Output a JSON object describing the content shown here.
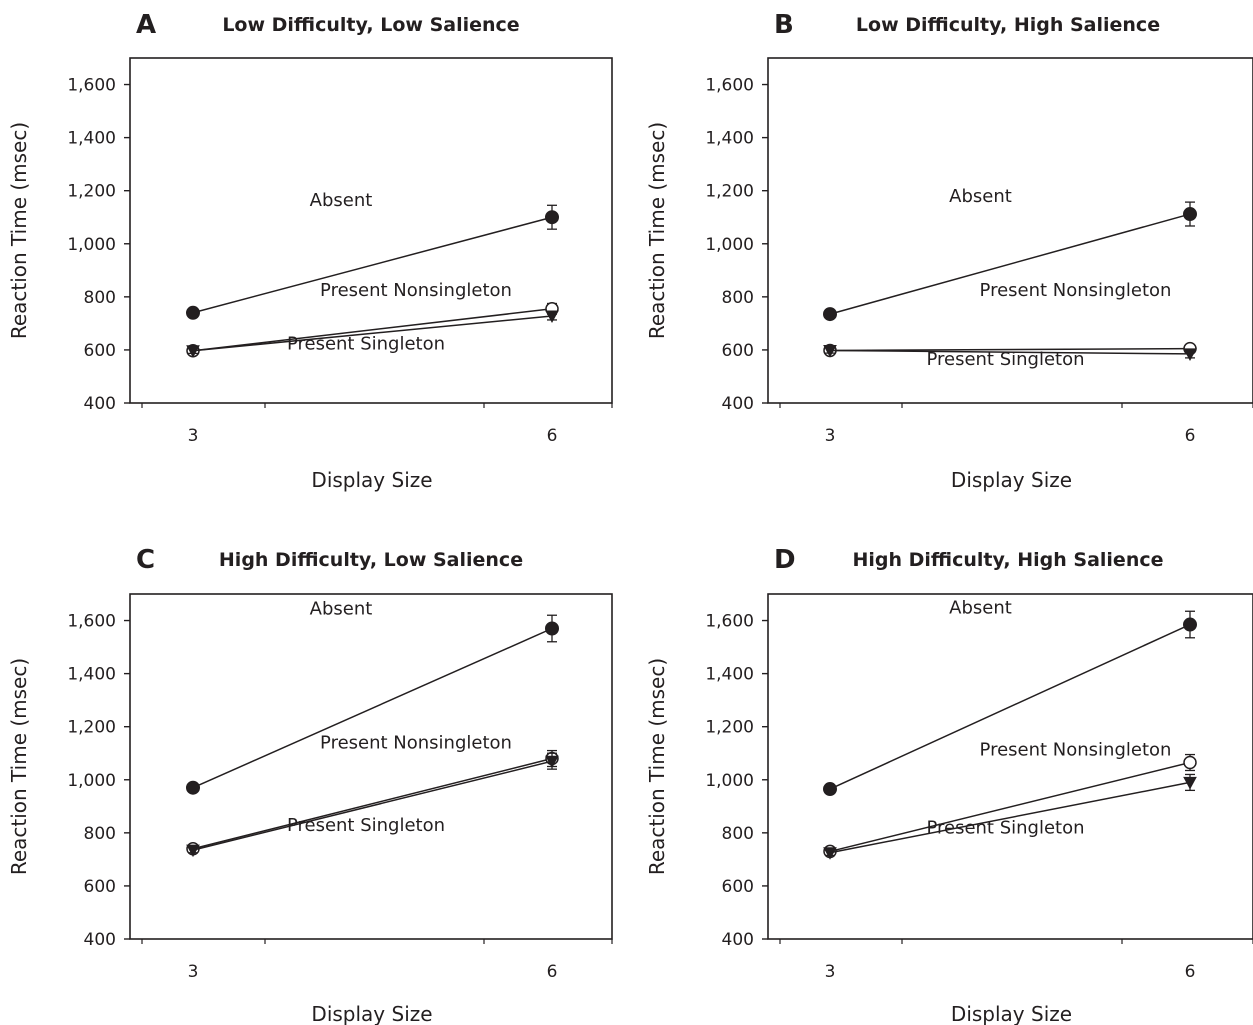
{
  "chart_data": [
    {
      "type": "line",
      "panel": "A",
      "title": "Low Difficulty, Low Salience",
      "xlabel": "Display Size",
      "ylabel": "Reaction Time (msec)",
      "x": [
        3,
        6
      ],
      "x_tick_labels": [
        "3",
        "6"
      ],
      "ylim": [
        400,
        1700
      ],
      "y_ticks": [
        400,
        600,
        800,
        1000,
        1200,
        1400,
        1600
      ],
      "y_tick_labels": [
        "400",
        "600",
        "800",
        "1,000",
        "1,200",
        "1,400",
        "1,600"
      ],
      "grid": false,
      "series": [
        {
          "name": "Absent",
          "marker": "filled-circle",
          "values": [
            740,
            1100
          ],
          "errors": [
            10,
            45
          ]
        },
        {
          "name": "Present Nonsingleton",
          "marker": "open-circle",
          "values": [
            597,
            755
          ],
          "errors": [
            10,
            20
          ]
        },
        {
          "name": "Present Singleton",
          "marker": "filled-triangle",
          "values": [
            597,
            728
          ],
          "errors": [
            10,
            15
          ]
        }
      ]
    },
    {
      "type": "line",
      "panel": "B",
      "title": "Low Difficulty, High Salience",
      "xlabel": "Display Size",
      "ylabel": "Reaction Time (msec)",
      "x": [
        3,
        6
      ],
      "x_tick_labels": [
        "3",
        "6"
      ],
      "ylim": [
        400,
        1700
      ],
      "y_ticks": [
        400,
        600,
        800,
        1000,
        1200,
        1400,
        1600
      ],
      "y_tick_labels": [
        "400",
        "600",
        "800",
        "1,000",
        "1,200",
        "1,400",
        "1,600"
      ],
      "grid": false,
      "series": [
        {
          "name": "Absent",
          "marker": "filled-circle",
          "values": [
            735,
            1112
          ],
          "errors": [
            10,
            45
          ]
        },
        {
          "name": "Present Nonsingleton",
          "marker": "open-circle",
          "values": [
            598,
            605
          ],
          "errors": [
            10,
            15
          ]
        },
        {
          "name": "Present Singleton",
          "marker": "filled-triangle",
          "values": [
            598,
            585
          ],
          "errors": [
            10,
            15
          ]
        }
      ]
    },
    {
      "type": "line",
      "panel": "C",
      "title": "High Difficulty, Low Salience",
      "xlabel": "Display Size",
      "ylabel": "Reaction Time (msec)",
      "x": [
        3,
        6
      ],
      "x_tick_labels": [
        "3",
        "6"
      ],
      "ylim": [
        400,
        1700
      ],
      "y_ticks": [
        400,
        600,
        800,
        1000,
        1200,
        1400,
        1600
      ],
      "y_tick_labels": [
        "400",
        "600",
        "800",
        "1,000",
        "1,200",
        "1,400",
        "1,600"
      ],
      "grid": false,
      "series": [
        {
          "name": "Absent",
          "marker": "filled-circle",
          "values": [
            970,
            1570
          ],
          "errors": [
            10,
            50
          ]
        },
        {
          "name": "Present Nonsingleton",
          "marker": "open-circle",
          "values": [
            740,
            1080
          ],
          "errors": [
            10,
            30
          ]
        },
        {
          "name": "Present Singleton",
          "marker": "filled-triangle",
          "values": [
            735,
            1070
          ],
          "errors": [
            10,
            30
          ]
        }
      ]
    },
    {
      "type": "line",
      "panel": "D",
      "title": "High Difficulty, High Salience",
      "xlabel": "Display Size",
      "ylabel": "Reaction Time (msec)",
      "x": [
        3,
        6
      ],
      "x_tick_labels": [
        "3",
        "6"
      ],
      "ylim": [
        400,
        1700
      ],
      "y_ticks": [
        400,
        600,
        800,
        1000,
        1200,
        1400,
        1600
      ],
      "y_tick_labels": [
        "400",
        "600",
        "800",
        "1,000",
        "1,200",
        "1,400",
        "1,600"
      ],
      "grid": false,
      "series": [
        {
          "name": "Absent",
          "marker": "filled-circle",
          "values": [
            965,
            1585
          ],
          "errors": [
            10,
            50
          ]
        },
        {
          "name": "Present Nonsingleton",
          "marker": "open-circle",
          "values": [
            730,
            1065
          ],
          "errors": [
            10,
            30
          ]
        },
        {
          "name": "Present Singleton",
          "marker": "filled-triangle",
          "values": [
            725,
            990
          ],
          "errors": [
            10,
            30
          ]
        }
      ]
    }
  ]
}
